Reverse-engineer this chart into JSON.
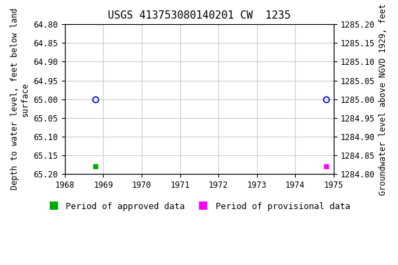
{
  "title": "USGS 413753080140201 CW  1235",
  "ylabel_left": "Depth to water level, feet below land\nsurface",
  "ylabel_right": "Groundwater level above NGVD 1929, feet",
  "xlim": [
    1968,
    1975
  ],
  "ylim_left": [
    64.8,
    65.2
  ],
  "ylim_right_top": 1285.2,
  "ylim_right_bottom": 1284.8,
  "yticks_left": [
    64.8,
    64.85,
    64.9,
    64.95,
    65.0,
    65.05,
    65.1,
    65.15,
    65.2
  ],
  "yticks_right": [
    1285.2,
    1285.15,
    1285.1,
    1285.05,
    1285.0,
    1284.95,
    1284.9,
    1284.85,
    1284.8
  ],
  "xticks": [
    1968,
    1969,
    1970,
    1971,
    1972,
    1973,
    1974,
    1975
  ],
  "circle_points": [
    [
      1968.8,
      65.0
    ],
    [
      1974.8,
      65.0
    ]
  ],
  "green_square": [
    1968.8,
    65.18
  ],
  "magenta_square": [
    1974.8,
    65.18
  ],
  "circle_color": "#0000cc",
  "green_color": "#00aa00",
  "magenta_color": "#ff00ff",
  "bg_color": "#ffffff",
  "grid_color": "#cccccc",
  "font_family": "monospace",
  "title_fontsize": 11,
  "label_fontsize": 8.5,
  "tick_fontsize": 8.5,
  "legend_fontsize": 9
}
